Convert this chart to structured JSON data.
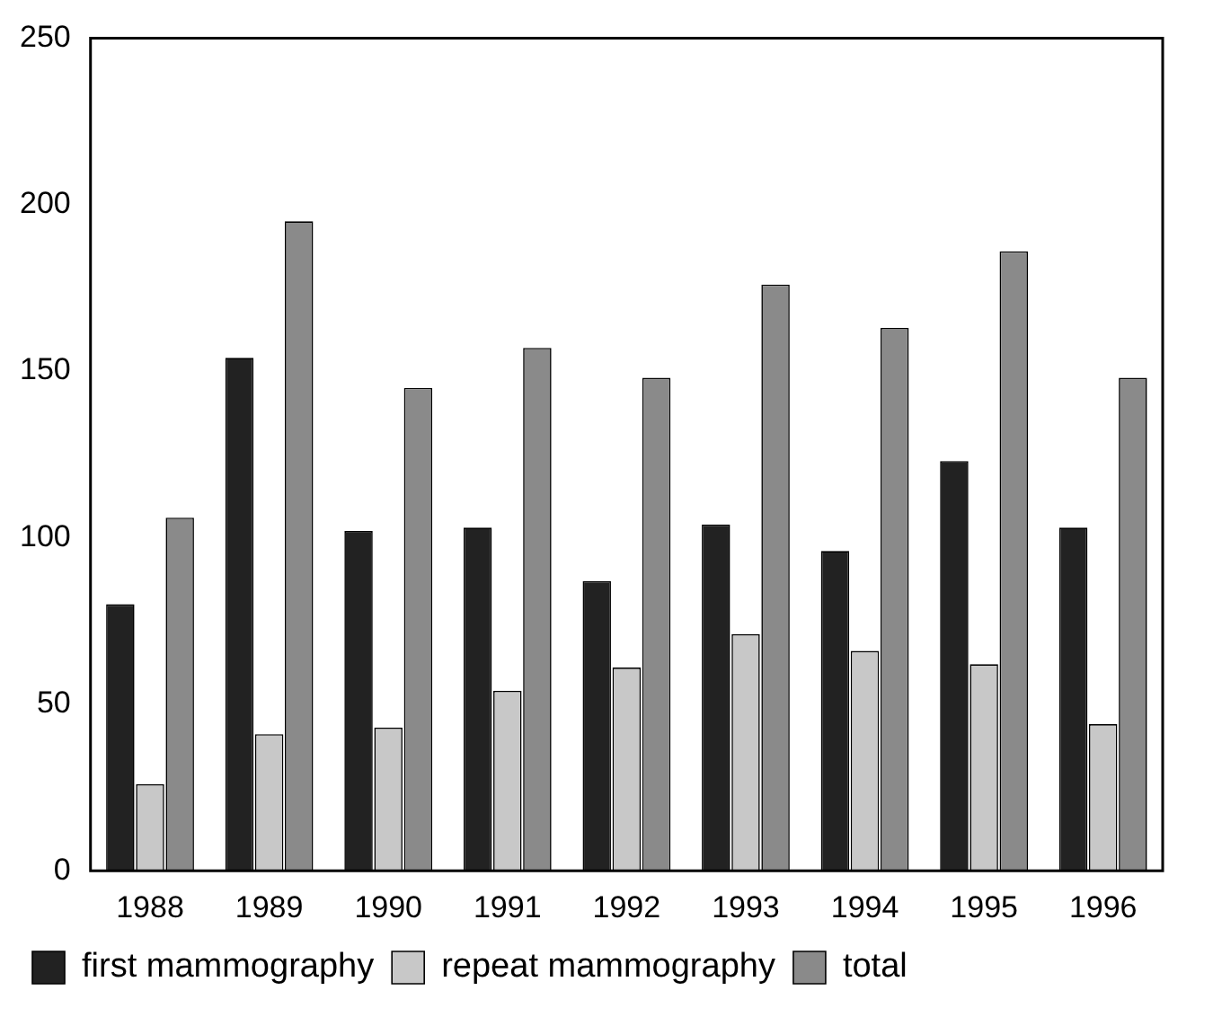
{
  "chart_data": {
    "type": "bar",
    "categories": [
      "1988",
      "1989",
      "1990",
      "1991",
      "1992",
      "1993",
      "1994",
      "1995",
      "1996"
    ],
    "series": [
      {
        "name": "first mammography",
        "color": "#222222",
        "values": [
          80,
          154,
          102,
          103,
          87,
          104,
          96,
          123,
          103
        ]
      },
      {
        "name": "repeat mammography",
        "color": "#c8c8c8",
        "values": [
          26,
          41,
          43,
          54,
          61,
          71,
          66,
          62,
          44
        ]
      },
      {
        "name": "total",
        "color": "#8a8a8a",
        "values": [
          106,
          195,
          145,
          157,
          148,
          176,
          163,
          186,
          148
        ]
      }
    ],
    "ylim": [
      0,
      250
    ],
    "yticks": [
      0,
      50,
      100,
      150,
      200,
      250
    ],
    "grid": false,
    "legend": "bottom"
  }
}
